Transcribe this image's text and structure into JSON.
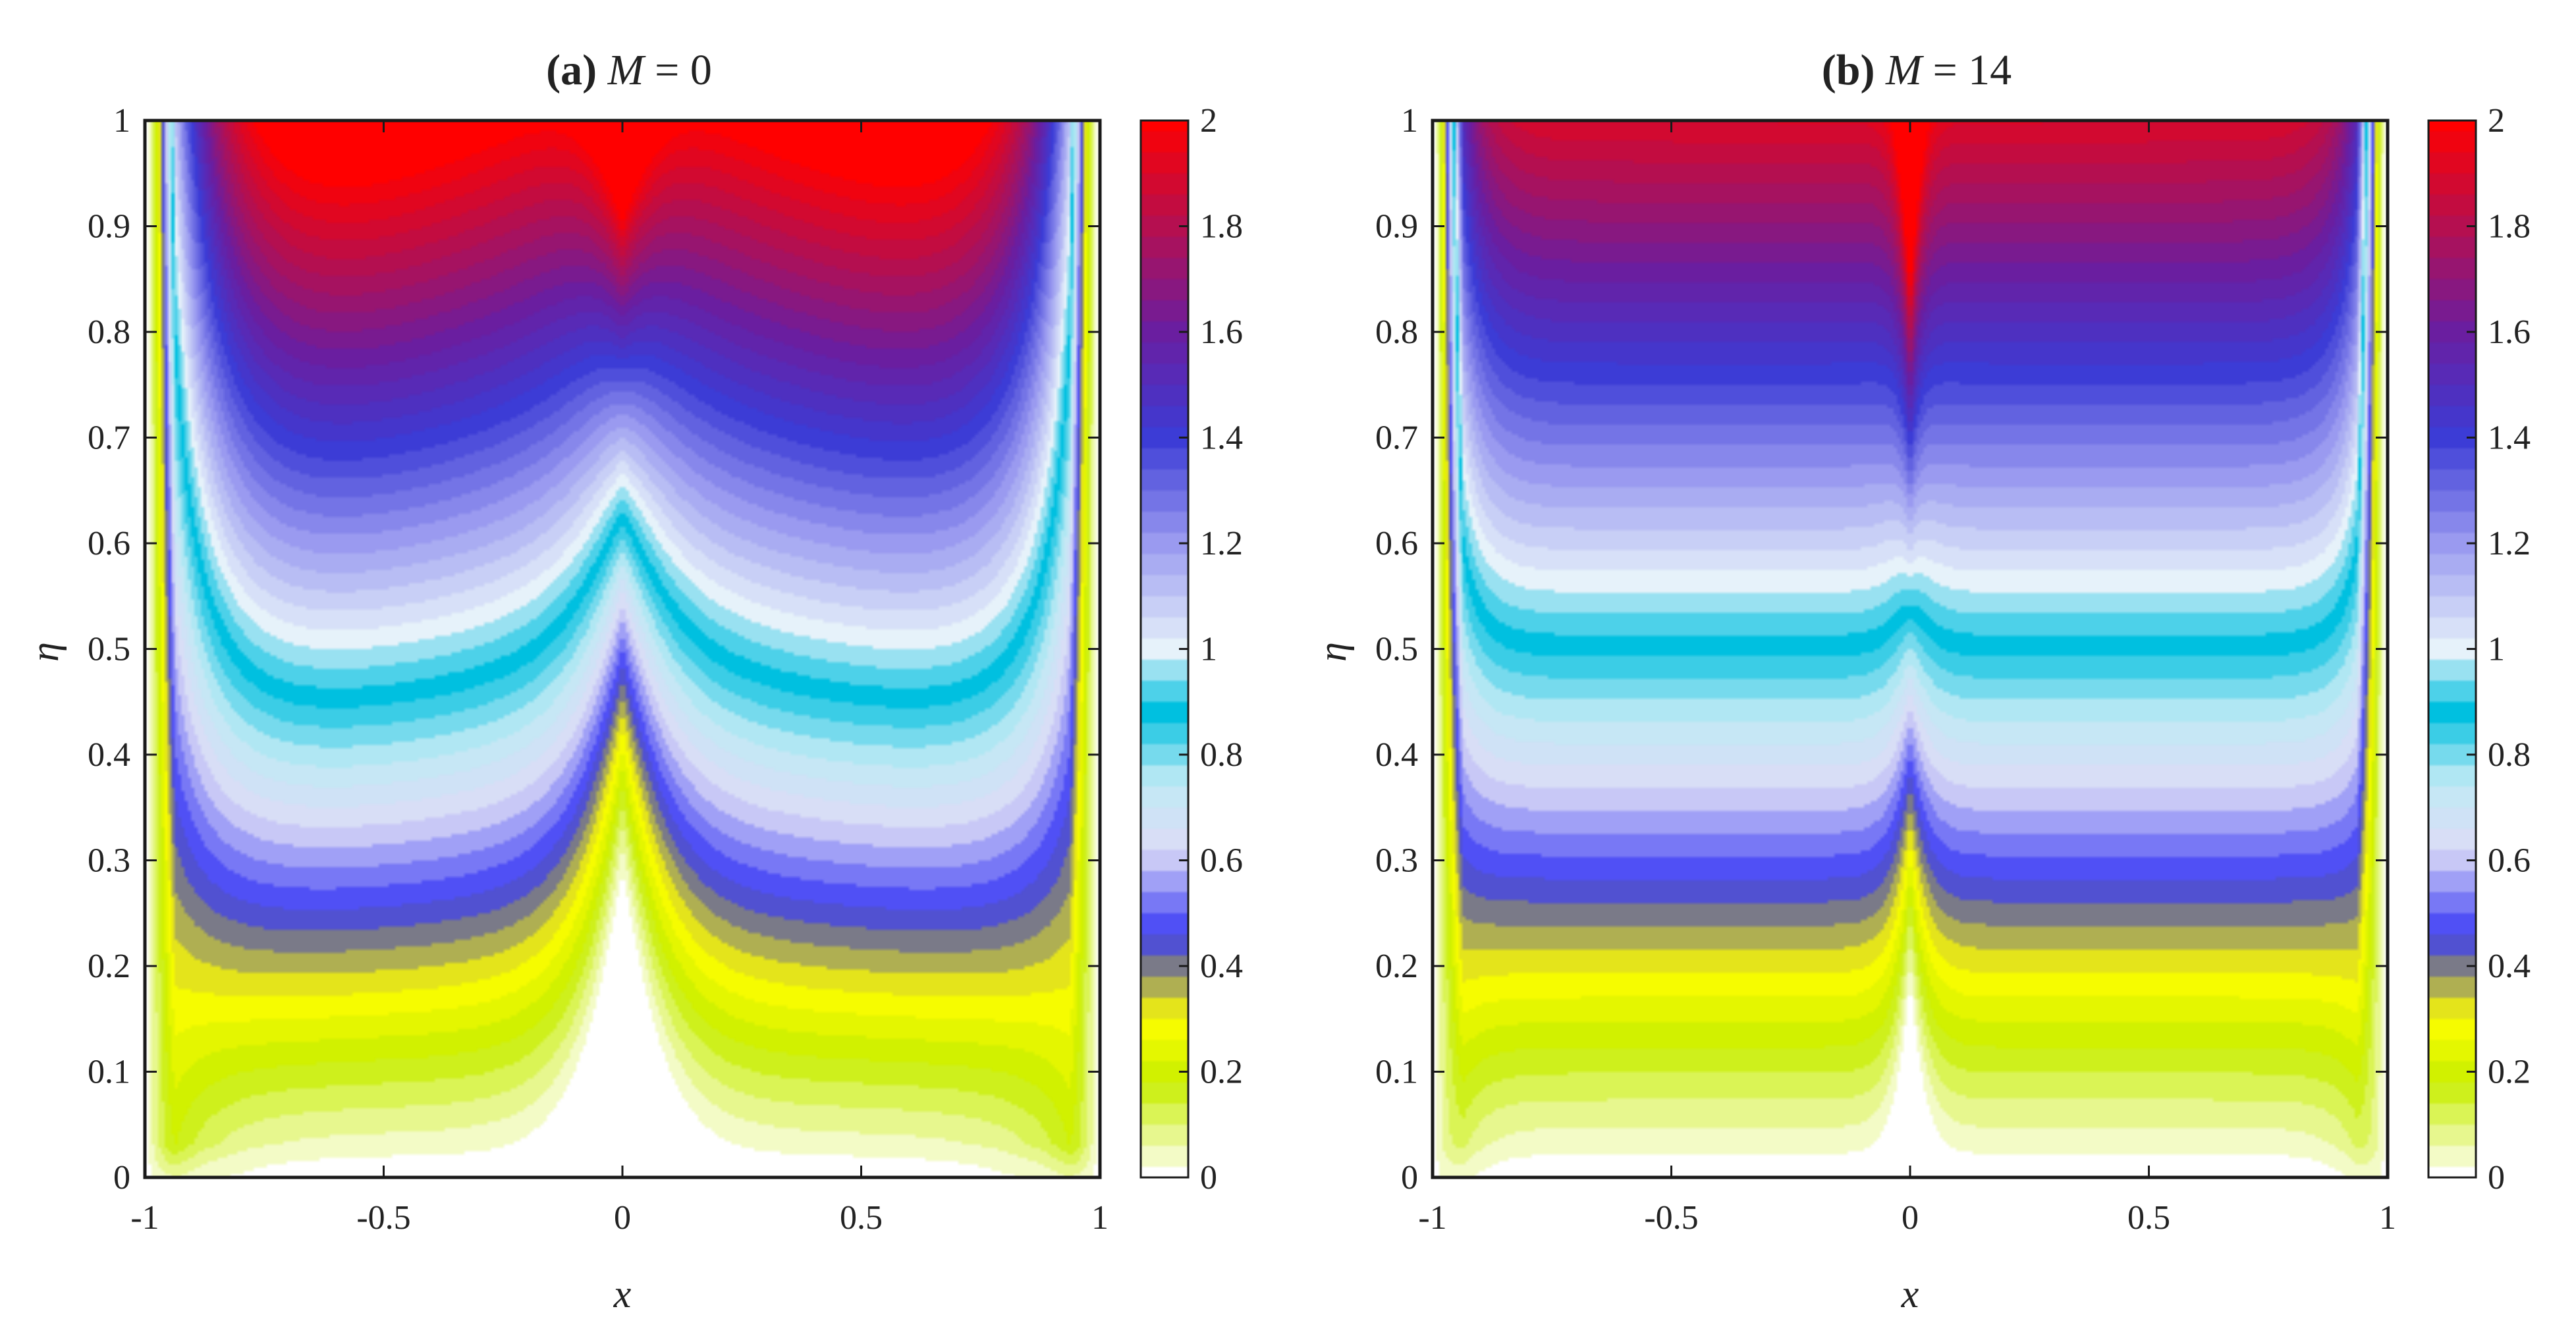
{
  "figure": {
    "colormap_stops": [
      {
        "v": 0.0,
        "color": "#ffffff"
      },
      {
        "v": 0.18,
        "color": "#c8ee00"
      },
      {
        "v": 0.3,
        "color": "#ffff00"
      },
      {
        "v": 0.4,
        "color": "#7a7a88"
      },
      {
        "v": 0.46,
        "color": "#3c3cf5"
      },
      {
        "v": 0.62,
        "color": "#dcdcf6"
      },
      {
        "v": 0.75,
        "color": "#bfeaf5"
      },
      {
        "v": 0.88,
        "color": "#00c0e0"
      },
      {
        "v": 1.0,
        "color": "#e6f2fa"
      },
      {
        "v": 1.2,
        "color": "#9a9af0"
      },
      {
        "v": 1.4,
        "color": "#3c3cd6"
      },
      {
        "v": 1.6,
        "color": "#6a1ea0"
      },
      {
        "v": 2.0,
        "color": "#ff0000"
      }
    ]
  },
  "chart_data": [
    {
      "type": "heatmap",
      "title_tag": "(a)",
      "title_symbol": "M",
      "title_rest": " = 0",
      "xlabel": "x",
      "ylabel": "η",
      "xlim": [
        -1,
        1
      ],
      "ylim": [
        0,
        1
      ],
      "x_ticks": [
        "-1",
        "-0.5",
        "0",
        "0.5",
        "1"
      ],
      "y_ticks": [
        "0",
        "0.1",
        "0.2",
        "0.3",
        "0.4",
        "0.5",
        "0.6",
        "0.7",
        "0.8",
        "0.9",
        "1"
      ],
      "colorbar_range": [
        0,
        2
      ],
      "colorbar_ticks": [
        "0",
        "0.2",
        "0.4",
        "0.6",
        "0.8",
        "1",
        "1.2",
        "1.4",
        "1.6",
        "1.8",
        "2"
      ],
      "M": 0
    },
    {
      "type": "heatmap",
      "title_tag": "(b)",
      "title_symbol": "M",
      "title_rest": " = 14",
      "xlabel": "x",
      "ylabel": "η",
      "xlim": [
        -1,
        1
      ],
      "ylim": [
        0,
        1
      ],
      "x_ticks": [
        "-1",
        "-0.5",
        "0",
        "0.5",
        "1"
      ],
      "y_ticks": [
        "0",
        "0.1",
        "0.2",
        "0.3",
        "0.4",
        "0.5",
        "0.6",
        "0.7",
        "0.8",
        "0.9",
        "1"
      ],
      "colorbar_range": [
        0,
        2
      ],
      "colorbar_ticks": [
        "0",
        "0.2",
        "0.4",
        "0.6",
        "0.8",
        "1",
        "1.2",
        "1.4",
        "1.6",
        "1.8",
        "2"
      ],
      "M": 14
    }
  ]
}
